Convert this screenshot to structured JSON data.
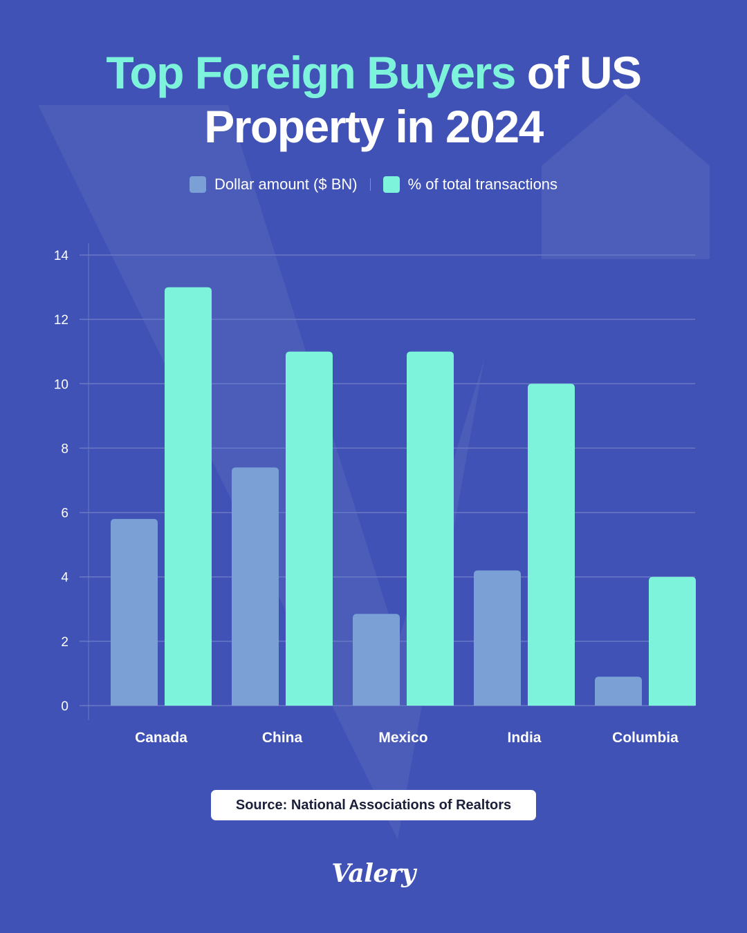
{
  "title": {
    "highlight": "Top Foreign Buyers",
    "rest_line1": " of US",
    "line2": "Property in 2024"
  },
  "legend": [
    {
      "label": "Dollar amount ($ BN)",
      "color": "#7aa0d6"
    },
    {
      "label": "% of total transactions",
      "color": "#7ef3dc"
    }
  ],
  "source": "Source: National Associations of Realtors",
  "logo": "Valery",
  "colors": {
    "background": "#4052b5",
    "accent": "#7ef3dc",
    "bar_dollar": "#7aa0d6",
    "bar_pct": "#7ef3dc",
    "grid": "#6a78c6",
    "text": "#ffffff"
  },
  "chart_data": {
    "type": "bar",
    "categories": [
      "Canada",
      "China",
      "Mexico",
      "India",
      "Columbia"
    ],
    "series": [
      {
        "name": "Dollar amount ($ BN)",
        "values": [
          5.8,
          7.4,
          2.85,
          4.2,
          0.9
        ]
      },
      {
        "name": "% of total transactions",
        "values": [
          13,
          11,
          11,
          10,
          4
        ]
      }
    ],
    "ylim": [
      0,
      14
    ],
    "yticks": [
      0,
      2,
      4,
      6,
      8,
      10,
      12,
      14
    ],
    "grid": true,
    "legend_position": "top-center"
  }
}
